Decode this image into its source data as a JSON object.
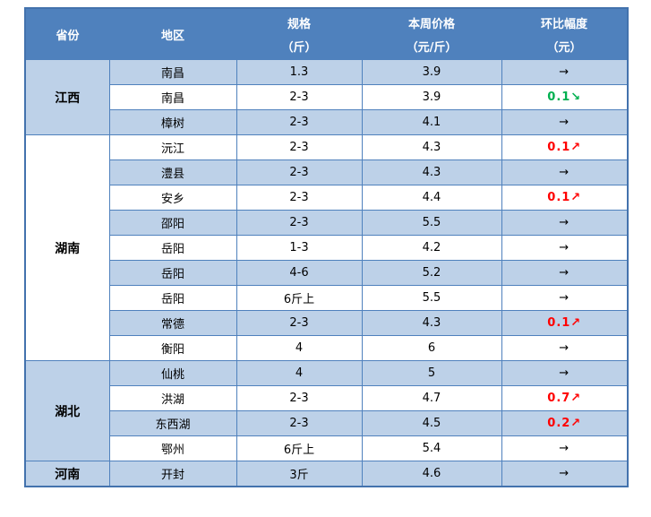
{
  "page": {
    "background": "#ffffff"
  },
  "table": {
    "columns": [
      {
        "label": "省份",
        "sub": ""
      },
      {
        "label": "地区",
        "sub": ""
      },
      {
        "label": "规格",
        "sub": "（斤）"
      },
      {
        "label": "本周价格",
        "sub": "（元/斤）"
      },
      {
        "label": "环比幅度",
        "sub": "（元）"
      }
    ],
    "colors": {
      "header_bg": "#4f81bd",
      "header_text": "#ffffff",
      "row_alt_bg": "#bdd1e8",
      "row_bg": "#ffffff",
      "border": "#4f81bd",
      "outer_border": "#4372ad",
      "up": "#ff0000",
      "down": "#00b050",
      "flat": "#000000"
    },
    "arrows": {
      "up": "↗",
      "down": "↘",
      "flat": "→"
    },
    "groups": [
      {
        "province": "江西",
        "rows": [
          {
            "region": "南昌",
            "spec": "1.3",
            "price": "3.9",
            "change": "",
            "trend": "flat"
          },
          {
            "region": "南昌",
            "spec": "2-3",
            "price": "3.9",
            "change": "0.1",
            "trend": "down"
          },
          {
            "region": "樟树",
            "spec": "2-3",
            "price": "4.1",
            "change": "",
            "trend": "flat"
          }
        ]
      },
      {
        "province": "湖南",
        "rows": [
          {
            "region": "沅江",
            "spec": "2-3",
            "price": "4.3",
            "change": "0.1",
            "trend": "up"
          },
          {
            "region": "澧县",
            "spec": "2-3",
            "price": "4.3",
            "change": "",
            "trend": "flat"
          },
          {
            "region": "安乡",
            "spec": "2-3",
            "price": "4.4",
            "change": "0.1",
            "trend": "up"
          },
          {
            "region": "邵阳",
            "spec": "2-3",
            "price": "5.5",
            "change": "",
            "trend": "flat"
          },
          {
            "region": "岳阳",
            "spec": "1-3",
            "price": "4.2",
            "change": "",
            "trend": "flat"
          },
          {
            "region": "岳阳",
            "spec": "4-6",
            "price": "5.2",
            "change": "",
            "trend": "flat"
          },
          {
            "region": "岳阳",
            "spec": "6斤上",
            "price": "5.5",
            "change": "",
            "trend": "flat"
          },
          {
            "region": "常德",
            "spec": "2-3",
            "price": "4.3",
            "change": "0.1",
            "trend": "up"
          },
          {
            "region": "衡阳",
            "spec": "4",
            "price": "6",
            "change": "",
            "trend": "flat"
          }
        ]
      },
      {
        "province": "湖北",
        "rows": [
          {
            "region": "仙桃",
            "spec": "4",
            "price": "5",
            "change": "",
            "trend": "flat"
          },
          {
            "region": "洪湖",
            "spec": "2-3",
            "price": "4.7",
            "change": "0.7",
            "trend": "up"
          },
          {
            "region": "东西湖",
            "spec": "2-3",
            "price": "4.5",
            "change": "0.2",
            "trend": "up"
          },
          {
            "region": "鄂州",
            "spec": "6斤上",
            "price": "5.4",
            "change": "",
            "trend": "flat"
          }
        ]
      },
      {
        "province": "河南",
        "rows": [
          {
            "region": "开封",
            "spec": "3斤",
            "price": "4.6",
            "change": "",
            "trend": "flat"
          }
        ]
      }
    ]
  }
}
